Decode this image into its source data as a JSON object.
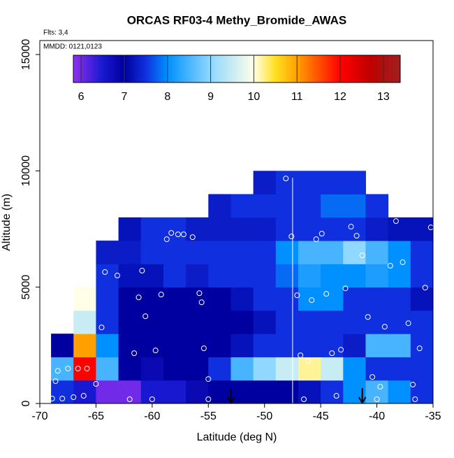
{
  "chart_data": {
    "type": "heatmap",
    "title": "ORCAS RF03-4 Methy_Bromide_AWAS",
    "subtitle": "Flts: 3,4",
    "annotation": "MMDD: 0121,0123",
    "x_label": "Latitude (deg N)",
    "y_label": "Altitude (m)",
    "xlim": [
      -70,
      -35
    ],
    "xticks": [
      -70,
      -65,
      -60,
      -55,
      -50,
      -45,
      -40,
      -35
    ],
    "ylim": [
      0,
      15600
    ],
    "yticks": [
      0,
      5000,
      10000,
      15000
    ],
    "x_edges": [
      -69,
      -67,
      -65,
      -63,
      -61,
      -59,
      -57,
      -55,
      -53,
      -51,
      -49,
      -47,
      -45,
      -43,
      -41,
      -39,
      -37,
      -35
    ],
    "y_edges": [
      0,
      1000,
      2000,
      3000,
      4000,
      5000,
      6000,
      7000,
      8000,
      9000,
      10000
    ],
    "z": [
      [
        7.5,
        6.5,
        6,
        6,
        6.5,
        6.5,
        6.8,
        7,
        7,
        7,
        7,
        7.2,
        7.5,
        8,
        8.5,
        8,
        7.5
      ],
      [
        8.5,
        12,
        8.5,
        7,
        6.8,
        7,
        7,
        7.5,
        8.5,
        9,
        9.5,
        10.2,
        9.5,
        8,
        7.5,
        7.5,
        7.5
      ],
      [
        7,
        11,
        8,
        7,
        7,
        7,
        7,
        7,
        7.2,
        7.5,
        7.5,
        7.5,
        7.5,
        7.3,
        8.5,
        8.5,
        7.5
      ],
      [
        null,
        9.5,
        7.5,
        7,
        7,
        7,
        7,
        7,
        7,
        7.2,
        7.5,
        7.5,
        7.5,
        7.5,
        7.5,
        7.5,
        7.5
      ],
      [
        null,
        10,
        7.5,
        7,
        7,
        7,
        7,
        7,
        7.2,
        7.5,
        7.5,
        8,
        8,
        7.5,
        7.5,
        7.5,
        7.2
      ],
      [
        null,
        null,
        7.5,
        7.2,
        7.2,
        7.5,
        7.3,
        7.5,
        7.5,
        7.5,
        7.8,
        8.2,
        8,
        8,
        8.2,
        8,
        7.5
      ],
      [
        null,
        null,
        7.3,
        7.3,
        7.5,
        7.5,
        7.5,
        7.5,
        7.5,
        7.5,
        8,
        8.5,
        8.5,
        9,
        8.5,
        8,
        7.5
      ],
      [
        null,
        null,
        null,
        7.2,
        7.5,
        7.5,
        7.3,
        7.3,
        7.3,
        7.3,
        7.5,
        7.5,
        7.5,
        7.5,
        7.3,
        7.2,
        7.2
      ],
      [
        null,
        null,
        null,
        null,
        null,
        null,
        null,
        7.3,
        7.5,
        7.5,
        7.5,
        7.5,
        7.8,
        7.8,
        7.5,
        null,
        null
      ],
      [
        null,
        null,
        null,
        null,
        null,
        null,
        null,
        null,
        null,
        7.3,
        7.5,
        7.5,
        7.5,
        7.5,
        null,
        null,
        null
      ]
    ],
    "zlim": [
      5.82,
      13.39
    ],
    "zticks": [
      6,
      7,
      8,
      9,
      10,
      11,
      12,
      13
    ],
    "colorscale": [
      [
        5.82,
        "#9030f0"
      ],
      [
        6.5,
        "#1818d0"
      ],
      [
        7,
        "#0000a0"
      ],
      [
        7.5,
        "#1030e0"
      ],
      [
        8,
        "#0090ff"
      ],
      [
        9,
        "#90d8ff"
      ],
      [
        10,
        "#ffffe8"
      ],
      [
        10.5,
        "#ffe020"
      ],
      [
        11,
        "#ffa000"
      ],
      [
        12,
        "#ff0000"
      ],
      [
        12.7,
        "#c00000"
      ],
      [
        13.39,
        "#a02020"
      ]
    ],
    "samples": {
      "color": "#ffffff",
      "x": [
        -68.9,
        -68.6,
        -68.4,
        -67.5,
        -66.6,
        -65.8,
        -68,
        -67,
        -66.1,
        -65,
        -62,
        -60,
        -55,
        -55,
        -55.4,
        -59.7,
        -61.6,
        -64.5,
        -60.6,
        -61.2,
        -59.2,
        -55.6,
        -55.8,
        -64.2,
        -63.1,
        -60.9,
        -63.6,
        -58.7,
        -58.3,
        -57.7,
        -57.2,
        -56.4,
        -56.5,
        -48.1,
        -47.6,
        -47.1,
        -45.8,
        -44.5,
        -42.8,
        -45.4,
        -44.9,
        -42.3,
        -41.8,
        -41.3,
        -38.8,
        -37.7,
        -38.3,
        -35.2,
        -35.7,
        -37.2,
        -39.3,
        -40.8,
        -43.2,
        -44,
        -46.8,
        -46.1,
        -36.2,
        -40.4,
        -39.7,
        -36.8,
        -43.6,
        -46.5,
        -36.6,
        -40
      ],
      "y": [
        210,
        960,
        1400,
        1500,
        1500,
        1500,
        210,
        270,
        330,
        840,
        180,
        180,
        180,
        1050,
        2370,
        2280,
        2160,
        3270,
        3750,
        4560,
        4680,
        4350,
        4740,
        5650,
        5500,
        5710,
        7120,
        7060,
        7330,
        7270,
        7270,
        7150,
        8290,
        9670,
        7180,
        4650,
        4440,
        4710,
        4950,
        7060,
        7300,
        7600,
        7210,
        6370,
        5920,
        6070,
        7840,
        7570,
        4980,
        3450,
        3300,
        3720,
        2310,
        2160,
        2070,
        1830,
        2370,
        1140,
        720,
        810,
        330,
        180,
        180,
        180
      ]
    },
    "vline": -47.5,
    "arrows_x": [
      -53,
      -41.3
    ]
  }
}
